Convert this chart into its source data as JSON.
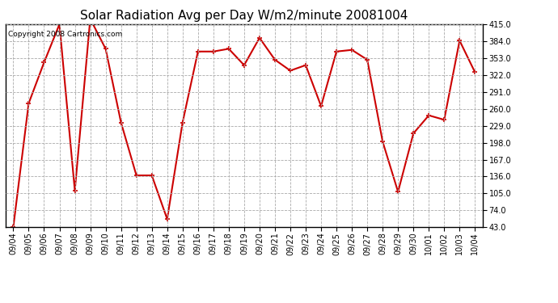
{
  "title": "Solar Radiation Avg per Day W/m2/minute 20081004",
  "copyright_text": "Copyright 2008 Cartronics.com",
  "dates": [
    "09/04",
    "09/05",
    "09/06",
    "09/07",
    "09/08",
    "09/09",
    "09/10",
    "09/11",
    "09/12",
    "09/13",
    "09/14",
    "09/15",
    "09/16",
    "09/17",
    "09/18",
    "09/19",
    "09/20",
    "09/21",
    "09/22",
    "09/23",
    "09/24",
    "09/25",
    "09/26",
    "09/27",
    "09/28",
    "09/29",
    "09/30",
    "10/01",
    "10/02",
    "10/03",
    "10/04"
  ],
  "values": [
    43,
    270,
    345,
    415,
    110,
    425,
    370,
    235,
    138,
    138,
    58,
    235,
    365,
    365,
    370,
    340,
    390,
    350,
    330,
    340,
    265,
    365,
    368,
    350,
    200,
    108,
    215,
    248,
    240,
    385,
    327
  ],
  "line_color": "#cc0000",
  "marker": "+",
  "marker_color": "#cc0000",
  "marker_size": 5,
  "line_width": 1.5,
  "ytick_labels": [
    "43.0",
    "74.0",
    "105.0",
    "136.0",
    "167.0",
    "198.0",
    "229.0",
    "260.0",
    "291.0",
    "322.0",
    "353.0",
    "384.0",
    "415.0"
  ],
  "ytick_values": [
    43.0,
    74.0,
    105.0,
    136.0,
    167.0,
    198.0,
    229.0,
    260.0,
    291.0,
    322.0,
    353.0,
    384.0,
    415.0
  ],
  "ylim": [
    43.0,
    415.0
  ],
  "grid_color": "#aaaaaa",
  "grid_linestyle": "--",
  "bg_color": "#ffffff",
  "plot_bg_color": "#ffffff",
  "title_fontsize": 11,
  "tick_fontsize": 7,
  "copyright_fontsize": 6.5
}
